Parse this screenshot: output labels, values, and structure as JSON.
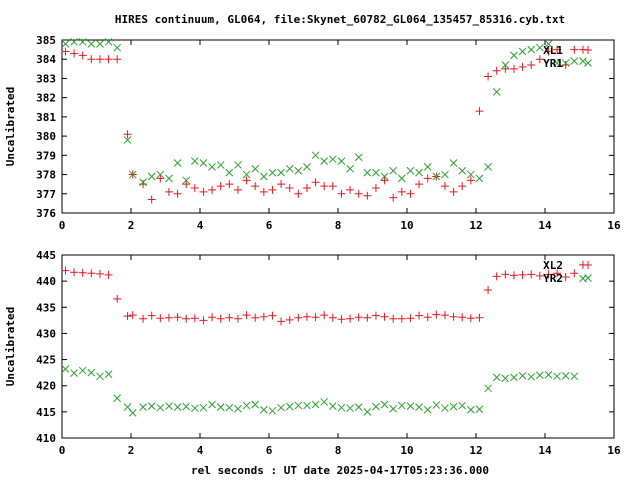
{
  "title": "HIRES continuum, GL064, file:Skynet_60782_GL064_135457_85316.cyb.txt",
  "xlabel": "rel seconds : UT date 2025-04-17T05:23:36.000",
  "colors": {
    "red": "#e41a1c",
    "green": "#2ca02c",
    "axis": "#000000"
  },
  "chart_data": [
    {
      "type": "scatter",
      "ylabel": "Uncalibrated",
      "xlim": [
        0,
        16
      ],
      "ylim": [
        376,
        385
      ],
      "xticks": [
        0,
        2,
        4,
        6,
        8,
        10,
        12,
        14,
        16
      ],
      "yticks": [
        376,
        377,
        378,
        379,
        380,
        381,
        382,
        383,
        384,
        385
      ],
      "grid": false,
      "legend_position": "top-right",
      "series": [
        {
          "name": "XL1",
          "color": "#e41a1c",
          "marker": "plus",
          "x": [
            0.0,
            0.2,
            0.4,
            0.6,
            0.8,
            1.0,
            1.2,
            1.4,
            1.6,
            1.8,
            2.0,
            2.2,
            2.4,
            2.6,
            2.8,
            3.0,
            3.2,
            3.4,
            3.6,
            3.8,
            4.0,
            4.2,
            4.4,
            4.6,
            4.8,
            5.0,
            5.2,
            5.4,
            5.6,
            5.8,
            6.0,
            6.2,
            6.4,
            6.6,
            6.8,
            7.0,
            7.2,
            7.4,
            7.6,
            7.8,
            8.0,
            8.2,
            8.4,
            8.6,
            8.8,
            9.0,
            9.2,
            9.4,
            9.6,
            9.8,
            10.0,
            10.2,
            10.4,
            10.6,
            10.8,
            11.0,
            11.2,
            11.4,
            11.6,
            11.8,
            12.0,
            12.2,
            12.4,
            12.6,
            12.8,
            13.0,
            13.2,
            13.4,
            13.6,
            13.8,
            14.0,
            14.2,
            14.4,
            14.6,
            14.8,
            15.0
          ],
          "y": [
            384.3,
            384.2,
            384.2,
            384.0,
            383.9,
            383.9,
            384.0,
            383.8,
            379.1,
            378.2,
            378.3,
            378.2,
            377.0,
            377.8,
            377.0,
            377.1,
            376.9,
            377.4,
            377.2,
            377.1,
            377.1,
            377.3,
            377.4,
            377.2,
            377.6,
            377.5,
            377.3,
            377.1,
            377.2,
            377.6,
            377.2,
            377.1,
            377.1,
            377.4,
            377.6,
            377.4,
            377.4,
            377.0,
            377.2,
            377.1,
            377.0,
            377.2,
            376.9,
            377.7,
            377.1,
            377.0,
            377.7,
            376.9,
            377.0,
            377.1,
            378.0,
            377.4,
            377.6,
            378.0,
            377.5,
            377.1,
            377.3,
            377.4,
            377.1,
            377.6,
            377.7,
            381.3,
            383.1,
            383.4,
            383.5,
            383.6,
            383.6,
            383.7,
            384.0,
            384.5,
            384.2,
            383.9,
            383.8,
            384.3,
            383.8,
            384.5
          ],
          "x_plot": [
            0.1,
            0.35,
            0.6,
            0.85,
            1.1,
            1.35,
            1.6,
            1.9,
            2.05,
            2.35,
            2.6,
            2.85,
            3.1,
            3.35,
            3.6,
            3.85,
            4.1,
            4.35,
            4.6,
            4.85,
            5.1,
            5.35,
            5.6,
            5.85,
            6.1,
            6.35,
            6.6,
            6.85,
            7.1,
            7.35,
            7.6,
            7.85,
            8.1,
            8.35,
            8.6,
            8.85,
            9.1,
            9.35,
            9.6,
            9.85,
            10.1,
            10.35,
            10.6,
            10.85,
            11.1,
            11.35,
            11.6,
            11.85,
            12.1,
            12.35,
            12.6,
            12.85,
            13.1,
            13.35,
            13.6,
            13.85,
            14.1,
            14.35,
            14.6,
            14.85,
            15.1
          ],
          "y_plot": [
            384.4,
            384.3,
            384.2,
            384.0,
            384.0,
            384.0,
            384.0,
            380.1,
            378.0,
            377.5,
            376.7,
            377.8,
            377.1,
            377.0,
            377.5,
            377.3,
            377.1,
            377.2,
            377.4,
            377.5,
            377.2,
            377.7,
            377.4,
            377.1,
            377.2,
            377.5,
            377.3,
            377.0,
            377.3,
            377.6,
            377.4,
            377.4,
            377.0,
            377.2,
            377.0,
            376.9,
            377.3,
            377.7,
            376.8,
            377.1,
            377.0,
            377.5,
            377.8,
            377.9,
            377.4,
            377.1,
            377.4,
            377.7,
            381.3,
            383.1,
            383.4,
            383.5,
            383.5,
            383.6,
            383.7,
            384.0,
            384.4,
            384.5,
            383.7,
            384.5,
            384.5
          ]
        },
        {
          "name": "YR1",
          "color": "#2ca02c",
          "marker": "cross",
          "x_plot": [
            0.1,
            0.35,
            0.6,
            0.85,
            1.1,
            1.35,
            1.6,
            1.9,
            2.05,
            2.35,
            2.6,
            2.85,
            3.1,
            3.35,
            3.6,
            3.85,
            4.1,
            4.35,
            4.6,
            4.85,
            5.1,
            5.35,
            5.6,
            5.85,
            6.1,
            6.35,
            6.6,
            6.85,
            7.1,
            7.35,
            7.6,
            7.85,
            8.1,
            8.35,
            8.6,
            8.85,
            9.1,
            9.35,
            9.6,
            9.85,
            10.1,
            10.35,
            10.6,
            10.85,
            11.1,
            11.35,
            11.6,
            11.85,
            12.1,
            12.35,
            12.6,
            12.85,
            13.1,
            13.35,
            13.6,
            13.85,
            14.1,
            14.35,
            14.6,
            14.85,
            15.1
          ],
          "y_plot": [
            384.8,
            384.9,
            384.9,
            384.8,
            384.8,
            384.9,
            384.6,
            379.8,
            378.0,
            377.6,
            377.9,
            378.0,
            377.8,
            378.6,
            377.7,
            378.7,
            378.6,
            378.4,
            378.5,
            378.1,
            378.5,
            378.0,
            378.3,
            377.9,
            378.1,
            378.1,
            378.3,
            378.2,
            378.4,
            379.0,
            378.7,
            378.8,
            378.7,
            378.3,
            378.9,
            378.1,
            378.1,
            377.9,
            378.2,
            377.8,
            378.2,
            378.1,
            378.4,
            377.9,
            378.0,
            378.6,
            378.2,
            378.0,
            377.8,
            378.4,
            382.3,
            383.7,
            384.2,
            384.4,
            384.5,
            384.6,
            384.8,
            383.8,
            383.8,
            383.9,
            383.9
          ]
        }
      ]
    },
    {
      "type": "scatter",
      "ylabel": "Uncalibrated",
      "xlim": [
        0,
        16
      ],
      "ylim": [
        410,
        445
      ],
      "xticks": [
        0,
        2,
        4,
        6,
        8,
        10,
        12,
        14,
        16
      ],
      "yticks": [
        410,
        415,
        420,
        425,
        430,
        435,
        440,
        445
      ],
      "grid": false,
      "legend_position": "top-right",
      "series": [
        {
          "name": "XL2",
          "color": "#e41a1c",
          "marker": "plus",
          "x_plot": [
            0.1,
            0.35,
            0.6,
            0.85,
            1.1,
            1.35,
            1.6,
            1.9,
            2.05,
            2.35,
            2.6,
            2.85,
            3.1,
            3.35,
            3.6,
            3.85,
            4.1,
            4.35,
            4.6,
            4.85,
            5.1,
            5.35,
            5.6,
            5.85,
            6.1,
            6.35,
            6.6,
            6.85,
            7.1,
            7.35,
            7.6,
            7.85,
            8.1,
            8.35,
            8.6,
            8.85,
            9.1,
            9.35,
            9.6,
            9.85,
            10.1,
            10.35,
            10.6,
            10.85,
            11.1,
            11.35,
            11.6,
            11.85,
            12.1,
            12.35,
            12.6,
            12.85,
            13.1,
            13.35,
            13.6,
            13.85,
            14.1,
            14.35,
            14.6,
            14.85,
            15.1
          ],
          "y_plot": [
            442.0,
            441.7,
            441.6,
            441.5,
            441.4,
            441.2,
            436.6,
            433.3,
            433.5,
            432.8,
            433.4,
            432.9,
            433.0,
            433.1,
            432.8,
            432.9,
            432.5,
            433.1,
            432.8,
            433.0,
            432.8,
            433.5,
            433.0,
            433.2,
            433.4,
            432.3,
            432.6,
            433.0,
            433.2,
            433.1,
            433.5,
            433.0,
            432.7,
            432.8,
            433.1,
            433.0,
            433.4,
            433.2,
            432.8,
            432.8,
            432.9,
            433.4,
            433.1,
            433.6,
            433.5,
            433.2,
            433.1,
            432.9,
            433.0,
            438.3,
            440.9,
            441.3,
            441.1,
            441.2,
            441.3,
            441.0,
            441.3,
            441.5,
            440.8,
            441.5,
            443.1
          ]
        },
        {
          "name": "YR2",
          "color": "#2ca02c",
          "marker": "cross",
          "x_plot": [
            0.1,
            0.35,
            0.6,
            0.85,
            1.1,
            1.35,
            1.6,
            1.9,
            2.05,
            2.35,
            2.6,
            2.85,
            3.1,
            3.35,
            3.6,
            3.85,
            4.1,
            4.35,
            4.6,
            4.85,
            5.1,
            5.35,
            5.6,
            5.85,
            6.1,
            6.35,
            6.6,
            6.85,
            7.1,
            7.35,
            7.6,
            7.85,
            8.1,
            8.35,
            8.6,
            8.85,
            9.1,
            9.35,
            9.6,
            9.85,
            10.1,
            10.35,
            10.6,
            10.85,
            11.1,
            11.35,
            11.6,
            11.85,
            12.1,
            12.35,
            12.6,
            12.85,
            13.1,
            13.35,
            13.6,
            13.85,
            14.1,
            14.35,
            14.6,
            14.85,
            15.1
          ],
          "y_plot": [
            423.2,
            422.4,
            422.9,
            422.5,
            421.8,
            422.2,
            417.6,
            415.9,
            414.8,
            415.9,
            416.1,
            415.8,
            416.1,
            415.9,
            416.0,
            415.7,
            415.8,
            416.4,
            415.9,
            415.8,
            415.6,
            416.2,
            416.4,
            415.4,
            415.2,
            415.8,
            416.0,
            416.2,
            416.2,
            416.4,
            416.9,
            416.1,
            415.8,
            415.7,
            415.9,
            415.0,
            416.0,
            416.4,
            415.6,
            416.2,
            416.1,
            415.9,
            415.4,
            416.3,
            415.7,
            416.0,
            416.2,
            415.4,
            415.5,
            419.5,
            421.6,
            421.4,
            421.6,
            421.9,
            421.7,
            422.0,
            422.1,
            421.8,
            421.9,
            421.8,
            440.5
          ]
        }
      ]
    }
  ]
}
